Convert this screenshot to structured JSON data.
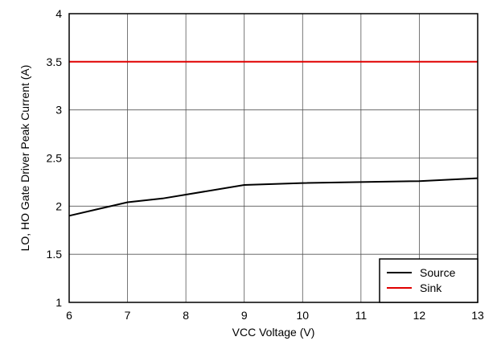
{
  "chart_data": {
    "type": "line",
    "title": "",
    "xlabel": "VCC Voltage (V)",
    "ylabel": "LO, HO Gate Driver Peak Current (A)",
    "xlim": [
      6,
      13
    ],
    "ylim": [
      1,
      4
    ],
    "xticks": [
      6,
      7,
      8,
      9,
      10,
      11,
      12,
      13
    ],
    "yticks": [
      1,
      1.5,
      2,
      2.5,
      3,
      3.5,
      4
    ],
    "ytick_labels": [
      "1",
      "1.5",
      "2",
      "2.5",
      "3",
      "3.5",
      "4"
    ],
    "grid": true,
    "legend_position": "bottom-right",
    "series": [
      {
        "name": "Source",
        "color": "#000000",
        "x": [
          6,
          7,
          7.6,
          9,
          10,
          12,
          13
        ],
        "y": [
          1.9,
          2.04,
          2.08,
          2.22,
          2.24,
          2.26,
          2.29
        ]
      },
      {
        "name": "Sink",
        "color": "#e00000",
        "x": [
          6,
          13
        ],
        "y": [
          3.5,
          3.5
        ]
      }
    ]
  }
}
